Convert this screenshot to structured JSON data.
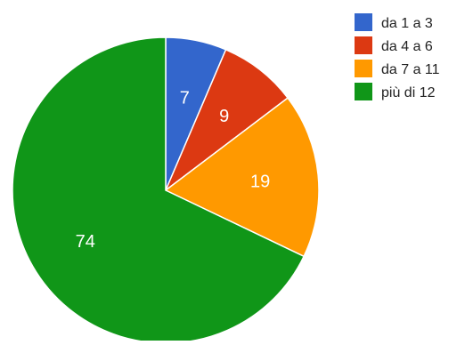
{
  "chart_data": {
    "type": "pie",
    "categories": [
      "da 1 a 3",
      "da 4 a 6",
      "da 7 a 11",
      "più di 12"
    ],
    "values": [
      7,
      9,
      19,
      74
    ],
    "data_labels": [
      "7",
      "9",
      "19",
      "74"
    ],
    "colors": [
      "#3366cc",
      "#dc3912",
      "#ff9900",
      "#109618"
    ],
    "start_angle_deg": 0,
    "direction": "clockwise",
    "legend": {
      "position": "right",
      "entries": [
        "da 1 a 3",
        "da 4 a 6",
        "da 7 a 11",
        "più di 12"
      ]
    }
  }
}
